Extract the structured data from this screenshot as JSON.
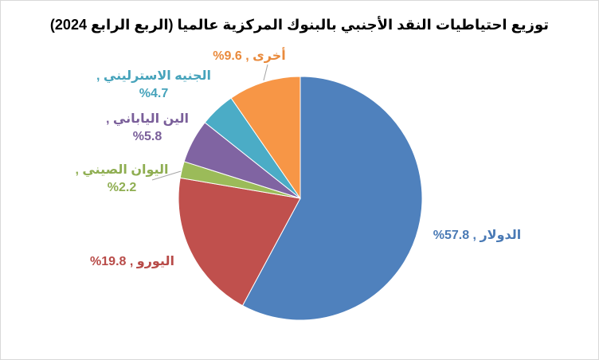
{
  "chart_data": {
    "type": "pie",
    "title": "توزيع احتياطيات النقد الأجنبي بالبنوك المركزية عالميا (الربع الرابع 2024)",
    "values": [
      57.8,
      19.8,
      2.2,
      5.8,
      4.7,
      9.6
    ],
    "value_labels": [
      "الدولار , 57.8%",
      "اليورو , 19.8%",
      "اليوان الصيني , 2.2%",
      "الين الياباني , 5.8%",
      "الجنيه الاسترليني , 4.7%",
      "أخرى , 9.6%"
    ],
    "colors": [
      "#4f81bd",
      "#c0504d",
      "#9bbb59",
      "#8064a2",
      "#4bacc6",
      "#f79646"
    ],
    "label_colors": [
      "#4a7ab5",
      "#b84b48",
      "#8fae52",
      "#7a5f9a",
      "#46a3bb",
      "#e98a3c"
    ]
  }
}
